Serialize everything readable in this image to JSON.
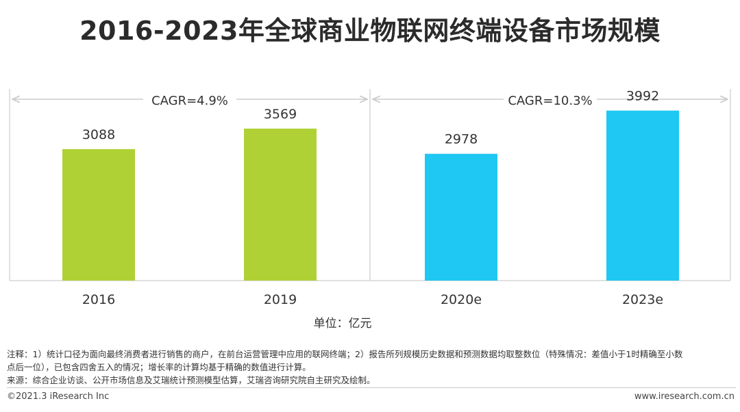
{
  "title": "2016-2023年全球商业物联网终端设备市场规模",
  "chart_data": {
    "type": "bar",
    "categories": [
      "2016",
      "2019",
      "2020e",
      "2023e"
    ],
    "values": [
      3088,
      3569,
      2978,
      3992
    ],
    "colors": [
      "#afd136",
      "#afd136",
      "#1ec8f2",
      "#1ec8f2"
    ],
    "ylim": [
      0,
      4500
    ],
    "grid": false,
    "unit_label": "单位：亿元",
    "cagr": [
      {
        "label": "CAGR=4.9%",
        "from": 0,
        "to": 1
      },
      {
        "label": "CAGR=10.3%",
        "from": 2,
        "to": 3
      }
    ]
  },
  "notes": {
    "line1": "注释：1）统计口径为面向最终消费者进行销售的商户，在前台运营管理中应用的联网终端；2）报告所列规模历史数据和预测数据均取整数位（特殊情况：差值小于1时精确至小数",
    "line2": "点后一位），已包含四舍五入的情况；增长率的计算均基于精确的数值进行计算。",
    "source": "来源：综合企业访谈、公开市场信息及艾瑞统计预测模型估算，艾瑞咨询研究院自主研究及绘制。"
  },
  "footer": {
    "left": "©2021.3 iResearch Inc",
    "right": "www.iresearch.com.cn"
  }
}
